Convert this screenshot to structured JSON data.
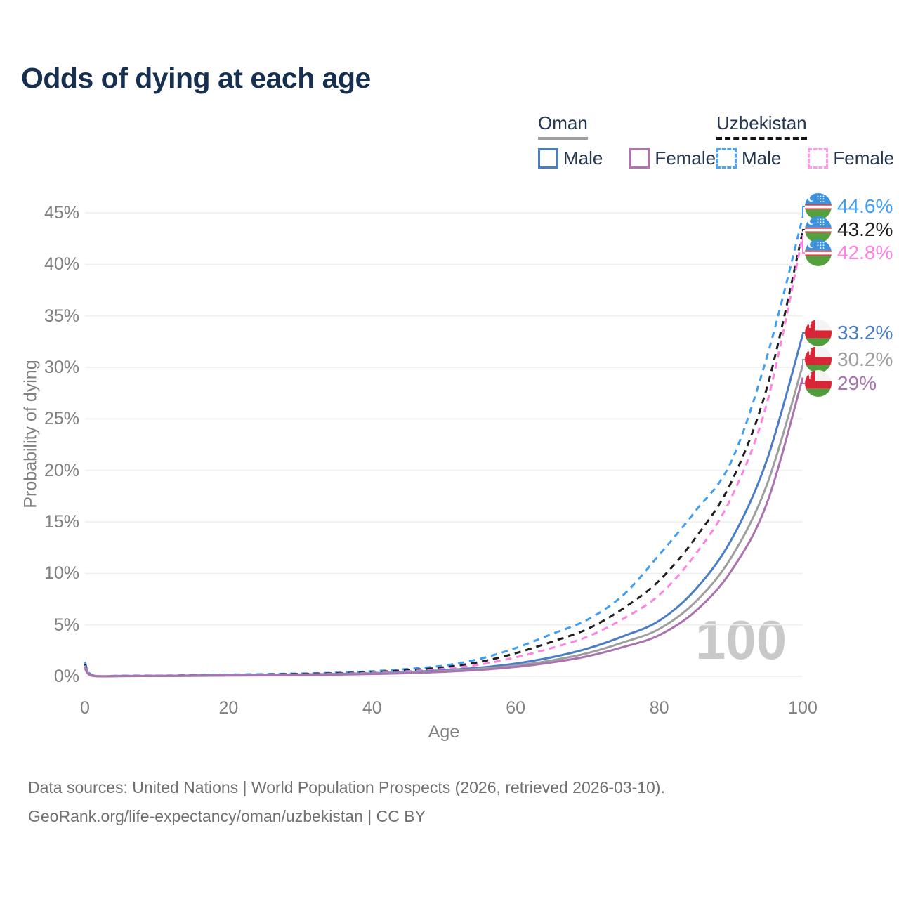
{
  "chart_data": {
    "type": "line",
    "title": "Odds of dying at each age",
    "xlabel": "Age",
    "ylabel": "Probability of dying",
    "xlim": [
      0,
      100
    ],
    "ylim": [
      0,
      45
    ],
    "grid": "horizontal",
    "watermark": "100",
    "yticks": [
      {
        "v": 0,
        "label": "0%"
      },
      {
        "v": 5,
        "label": "5%"
      },
      {
        "v": 10,
        "label": "10%"
      },
      {
        "v": 15,
        "label": "15%"
      },
      {
        "v": 20,
        "label": "20%"
      },
      {
        "v": 25,
        "label": "25%"
      },
      {
        "v": 30,
        "label": "30%"
      },
      {
        "v": 35,
        "label": "35%"
      },
      {
        "v": 40,
        "label": "40%"
      },
      {
        "v": 45,
        "label": "45%"
      }
    ],
    "xticks": [
      {
        "v": 0,
        "label": "0"
      },
      {
        "v": 20,
        "label": "20"
      },
      {
        "v": 40,
        "label": "40"
      },
      {
        "v": 60,
        "label": "60"
      },
      {
        "v": 80,
        "label": "80"
      },
      {
        "v": 100,
        "label": "100"
      }
    ],
    "series": [
      {
        "name": "Uzbekistan Male",
        "country": "Uzbekistan",
        "sex": "Male",
        "style": "dashed",
        "color": "#3f9df5",
        "flag": "uz",
        "end_label": "44.6%",
        "points": [
          [
            0,
            1.4
          ],
          [
            1,
            0.12
          ],
          [
            5,
            0.06
          ],
          [
            10,
            0.07
          ],
          [
            15,
            0.11
          ],
          [
            20,
            0.17
          ],
          [
            25,
            0.22
          ],
          [
            30,
            0.28
          ],
          [
            35,
            0.36
          ],
          [
            40,
            0.5
          ],
          [
            45,
            0.72
          ],
          [
            50,
            1.05
          ],
          [
            55,
            1.7
          ],
          [
            60,
            2.75
          ],
          [
            65,
            4.1
          ],
          [
            70,
            5.5
          ],
          [
            75,
            7.9
          ],
          [
            80,
            11.8
          ],
          [
            85,
            16.0
          ],
          [
            90,
            20.8
          ],
          [
            95,
            31.0
          ],
          [
            100,
            44.6
          ]
        ]
      },
      {
        "name": "Uzbekistan",
        "country": "Uzbekistan",
        "sex": "Both",
        "style": "dashed",
        "color": "#1f1f1f",
        "flag": "uz",
        "end_label": "43.2%",
        "points": [
          [
            0,
            1.2
          ],
          [
            1,
            0.1
          ],
          [
            5,
            0.05
          ],
          [
            10,
            0.06
          ],
          [
            15,
            0.09
          ],
          [
            20,
            0.14
          ],
          [
            25,
            0.18
          ],
          [
            30,
            0.23
          ],
          [
            35,
            0.3
          ],
          [
            40,
            0.42
          ],
          [
            45,
            0.6
          ],
          [
            50,
            0.88
          ],
          [
            55,
            1.4
          ],
          [
            60,
            2.25
          ],
          [
            65,
            3.35
          ],
          [
            70,
            4.6
          ],
          [
            75,
            6.6
          ],
          [
            80,
            9.3
          ],
          [
            85,
            13.4
          ],
          [
            90,
            18.8
          ],
          [
            95,
            28.0
          ],
          [
            100,
            43.2
          ]
        ]
      },
      {
        "name": "Uzbekistan Female",
        "country": "Uzbekistan",
        "sex": "Female",
        "style": "dashed",
        "color": "#ff82e2",
        "flag": "uz",
        "end_label": "42.8%",
        "points": [
          [
            0,
            1.05
          ],
          [
            1,
            0.09
          ],
          [
            5,
            0.04
          ],
          [
            10,
            0.05
          ],
          [
            15,
            0.07
          ],
          [
            20,
            0.11
          ],
          [
            25,
            0.15
          ],
          [
            30,
            0.19
          ],
          [
            35,
            0.25
          ],
          [
            40,
            0.35
          ],
          [
            45,
            0.5
          ],
          [
            50,
            0.73
          ],
          [
            55,
            1.15
          ],
          [
            60,
            1.85
          ],
          [
            65,
            2.75
          ],
          [
            70,
            3.85
          ],
          [
            75,
            5.6
          ],
          [
            80,
            7.9
          ],
          [
            85,
            11.8
          ],
          [
            90,
            17.3
          ],
          [
            95,
            26.5
          ],
          [
            100,
            42.8
          ]
        ]
      },
      {
        "name": "Oman Male",
        "country": "Oman",
        "sex": "Male",
        "style": "solid",
        "color": "#4a7dc5",
        "flag": "om",
        "end_label": "33.2%",
        "points": [
          [
            0,
            0.95
          ],
          [
            1,
            0.08
          ],
          [
            5,
            0.04
          ],
          [
            10,
            0.05
          ],
          [
            15,
            0.08
          ],
          [
            20,
            0.12
          ],
          [
            25,
            0.15
          ],
          [
            30,
            0.18
          ],
          [
            35,
            0.23
          ],
          [
            40,
            0.3
          ],
          [
            45,
            0.42
          ],
          [
            50,
            0.6
          ],
          [
            55,
            0.85
          ],
          [
            60,
            1.25
          ],
          [
            65,
            1.85
          ],
          [
            70,
            2.7
          ],
          [
            75,
            3.9
          ],
          [
            80,
            5.4
          ],
          [
            85,
            8.4
          ],
          [
            90,
            13.2
          ],
          [
            95,
            21.0
          ],
          [
            100,
            33.2
          ]
        ]
      },
      {
        "name": "Oman",
        "country": "Oman",
        "sex": "Both",
        "style": "solid",
        "color": "#9e9e9e",
        "flag": "om",
        "end_label": "30.2%",
        "points": [
          [
            0,
            0.85
          ],
          [
            1,
            0.07
          ],
          [
            5,
            0.03
          ],
          [
            10,
            0.04
          ],
          [
            15,
            0.07
          ],
          [
            20,
            0.1
          ],
          [
            25,
            0.13
          ],
          [
            30,
            0.16
          ],
          [
            35,
            0.2
          ],
          [
            40,
            0.27
          ],
          [
            45,
            0.37
          ],
          [
            50,
            0.52
          ],
          [
            55,
            0.74
          ],
          [
            60,
            1.05
          ],
          [
            65,
            1.55
          ],
          [
            70,
            2.25
          ],
          [
            75,
            3.3
          ],
          [
            80,
            4.6
          ],
          [
            85,
            7.2
          ],
          [
            90,
            11.5
          ],
          [
            95,
            18.6
          ],
          [
            100,
            30.2
          ]
        ]
      },
      {
        "name": "Oman Female",
        "country": "Oman",
        "sex": "Female",
        "style": "solid",
        "color": "#aa72ae",
        "flag": "om",
        "end_label": "29%",
        "points": [
          [
            0,
            0.75
          ],
          [
            1,
            0.06
          ],
          [
            5,
            0.03
          ],
          [
            10,
            0.04
          ],
          [
            15,
            0.05
          ],
          [
            20,
            0.08
          ],
          [
            25,
            0.1
          ],
          [
            30,
            0.13
          ],
          [
            35,
            0.17
          ],
          [
            40,
            0.23
          ],
          [
            45,
            0.31
          ],
          [
            50,
            0.44
          ],
          [
            55,
            0.63
          ],
          [
            60,
            0.92
          ],
          [
            65,
            1.35
          ],
          [
            70,
            1.95
          ],
          [
            75,
            2.85
          ],
          [
            80,
            4.0
          ],
          [
            85,
            6.3
          ],
          [
            90,
            10.2
          ],
          [
            95,
            16.8
          ],
          [
            100,
            29.0
          ]
        ]
      }
    ]
  },
  "legend": {
    "groups": [
      {
        "name": "Oman",
        "style": "solid",
        "underline_color": "#9e9e9e",
        "items": [
          {
            "label": "Male",
            "color": "#4a7dc5"
          },
          {
            "label": "Female",
            "color": "#b273ae"
          }
        ]
      },
      {
        "name": "Uzbekistan",
        "style": "dashed",
        "underline_color": "#111111",
        "items": [
          {
            "label": "Male",
            "color": "#4da3f7"
          },
          {
            "label": "Female",
            "color": "#ff9be8"
          }
        ]
      }
    ]
  },
  "footer": {
    "line1": "Data sources: United Nations | World Population Prospects (2026, retrieved 2026-03-10).",
    "line2": "GeoRank.org/life-expectancy/oman/uzbekistan | CC BY"
  }
}
